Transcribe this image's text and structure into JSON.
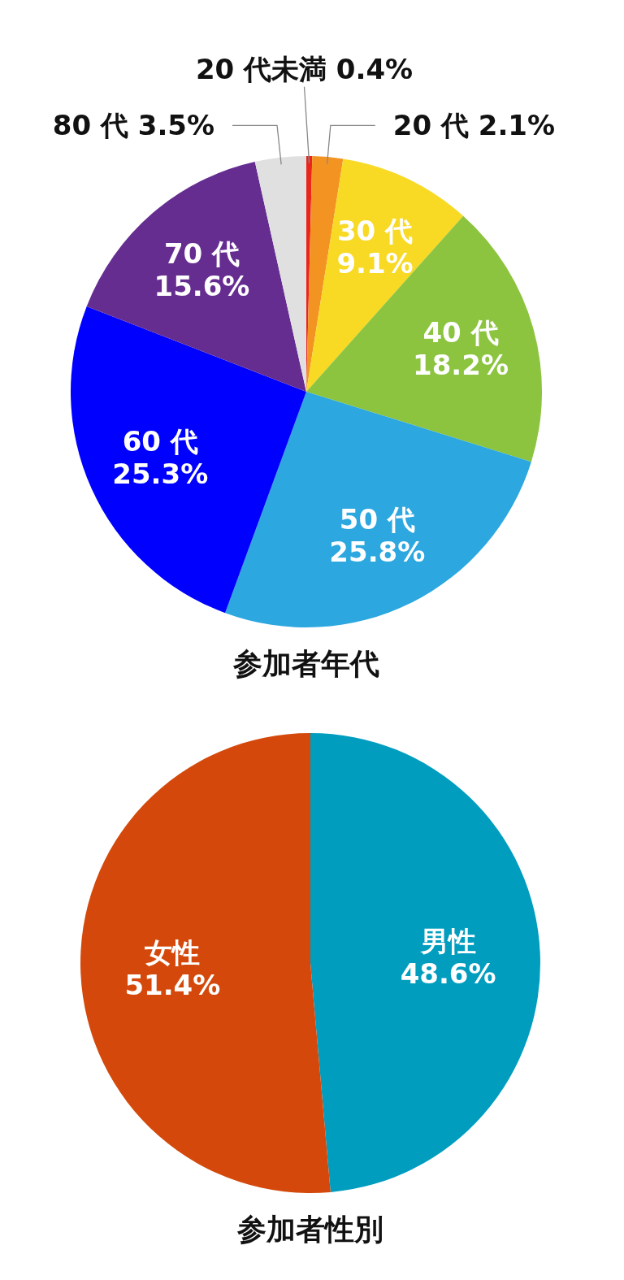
{
  "chart_data": [
    {
      "type": "pie",
      "title": "参加者年代",
      "categories": [
        "20 代未満",
        "20 代",
        "30 代",
        "40 代",
        "50 代",
        "60 代",
        "70 代",
        "80 代"
      ],
      "values": [
        0.4,
        2.1,
        9.1,
        18.2,
        25.8,
        25.3,
        15.6,
        3.5
      ],
      "colors": [
        "#e8261c",
        "#f39322",
        "#f8d923",
        "#8cc43f",
        "#2ca7df",
        "#0000ff",
        "#662d91",
        "#e0e0e0"
      ],
      "value_labels": [
        "0.4%",
        "2.1%",
        "9.1%",
        "18.2%",
        "25.8%",
        "25.3%",
        "15.6%",
        "3.5%"
      ]
    },
    {
      "type": "pie",
      "title": "参加者性別",
      "categories": [
        "男性",
        "女性"
      ],
      "values": [
        48.6,
        51.4
      ],
      "colors": [
        "#009dbf",
        "#d4490b"
      ],
      "value_labels": [
        "48.6%",
        "51.4%"
      ]
    }
  ]
}
